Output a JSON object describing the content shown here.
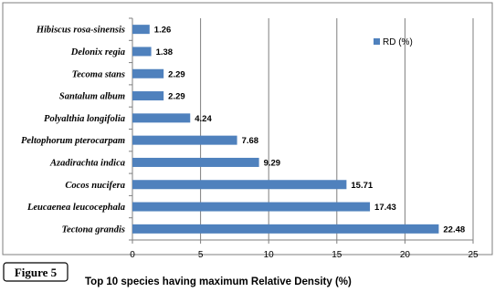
{
  "figure_label": "Figure 5",
  "caption": "Top 10 species having maximum Relative Density (%)",
  "chart_data": {
    "type": "bar",
    "orientation": "horizontal",
    "categories": [
      "Hibiscus rosa-sinensis",
      "Delonix regia",
      "Tecoma stans",
      "Santalum album",
      "Polyalthia longifolia",
      "Peltophorum pterocarpam",
      "Azadirachta indica",
      "Cocos nucifera",
      "Leucaenea leucocephala",
      "Tectona grandis"
    ],
    "value_labels": [
      "1.26",
      "1.38",
      "2.29",
      "2.29",
      "4.24",
      "7.68",
      "9.29",
      "15.71",
      "17.43",
      "22.48"
    ],
    "series": [
      {
        "name": "RD (%)",
        "values": [
          1.26,
          1.38,
          2.29,
          2.29,
          4.24,
          7.68,
          9.29,
          15.71,
          17.43,
          22.48
        ]
      }
    ],
    "xlim": [
      0,
      25
    ],
    "x_ticks": [
      "0",
      "5",
      "10",
      "15",
      "20",
      "25"
    ],
    "grid": "vertical",
    "legend_position": "top-right",
    "bar_color": "#4f81bd"
  }
}
